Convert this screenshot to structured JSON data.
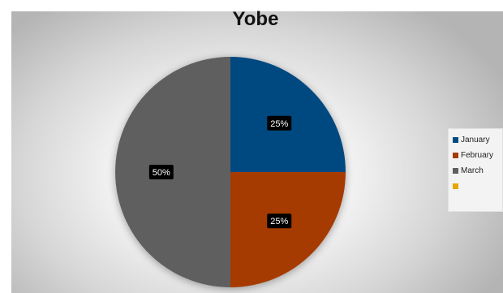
{
  "chart_data": {
    "type": "pie",
    "title": "Yobe",
    "categories": [
      "January",
      "February",
      "March",
      ""
    ],
    "values": [
      25,
      25,
      50,
      0
    ],
    "data_labels": [
      "25%",
      "25%",
      "50%",
      ""
    ],
    "colors": [
      "#004a80",
      "#a53a00",
      "#5f5f5f",
      "#e6a600"
    ],
    "legend_position": "right"
  }
}
